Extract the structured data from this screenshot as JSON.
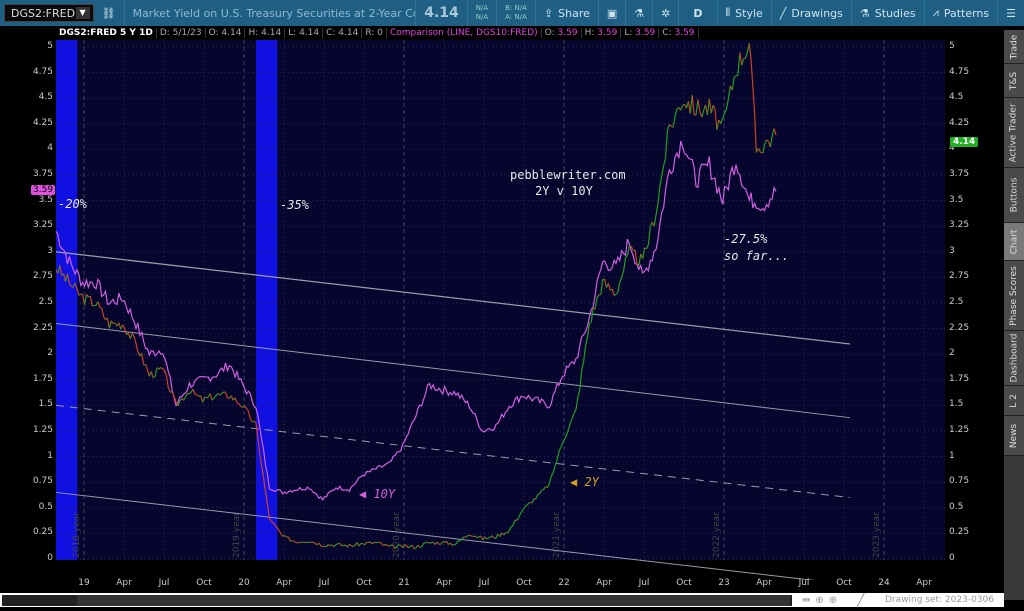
{
  "toolbar": {
    "symbol": "DGS2:FRED",
    "description": "Market Yield on U.S. Treasury Securities at 2-Year Constant...",
    "last": "4.14",
    "na1": "N/A",
    "na2": "N/A",
    "bid": "B: N/A",
    "ask": "A: N/A",
    "share": "Share",
    "aggregation": "D",
    "style": "Style",
    "drawings": "Drawings",
    "studies": "Studies",
    "patterns": "Patterns"
  },
  "info": {
    "title": "DGS2:FRED 5 Y 1D",
    "date": "D: 5/1/23",
    "open": "O: 4.14",
    "high": "H: 4.14",
    "low": "L: 4.14",
    "close": "C: 4.14",
    "range": "R: 0",
    "comparison": "Comparison (LINE, DGS10:FRED)",
    "c_open_l": "O:",
    "c_open": "3.59",
    "c_high_l": "H:",
    "c_high": "3.59",
    "c_low_l": "L:",
    "c_low": "3.59",
    "c_close_l": "C:",
    "c_close": "3.59"
  },
  "sidebar": [
    "Trade",
    "T&S",
    "Active Trader",
    "Buttons",
    "Chart",
    "Phase Scores",
    "Dashboard",
    "L 2",
    "News"
  ],
  "annotations": {
    "site": "pebblewriter.com",
    "subtitle": "2Y v 10Y",
    "a1": "-20%",
    "a2": "-35%",
    "a3": "-27.5%",
    "a4": "so far...",
    "l10": "10Y",
    "l2": "2Y"
  },
  "badges": {
    "left": "3.59",
    "right": "4.14"
  },
  "drawing_set": "Drawing set: 2023-0306",
  "colors": {
    "bg": "#05052e",
    "up": "#1fa01f",
    "down": "#d04020",
    "comparison": "#d060e0",
    "shade": "#1010e0",
    "badge_left": "#e050e0",
    "badge_right": "#20b020"
  },
  "chart_data": {
    "type": "line",
    "ylim": [
      0,
      5
    ],
    "yticks": [
      "0",
      "0.25",
      "0.5",
      "0.75",
      "1",
      "1.25",
      "1.5",
      "1.75",
      "2",
      "2.25",
      "2.5",
      "2.75",
      "3",
      "3.25",
      "3.5",
      "3.75",
      "4",
      "4.25",
      "4.5",
      "4.75",
      "5"
    ],
    "xticks": [
      "19",
      "Apr",
      "Jul",
      "Oct",
      "20",
      "Apr",
      "Jul",
      "Oct",
      "21",
      "Apr",
      "Jul",
      "Oct",
      "22",
      "Apr",
      "Jul",
      "Oct",
      "23",
      "Apr",
      "Jul",
      "Oct",
      "24",
      "Apr"
    ],
    "year_markers": [
      "2018 year",
      "2019 year",
      "2020 year",
      "2021 year",
      "2022 year",
      "2023 year"
    ],
    "x_start": "2018-11",
    "x": [
      "2018-11",
      "2018-12",
      "2019-01",
      "2019-02",
      "2019-03",
      "2019-04",
      "2019-05",
      "2019-06",
      "2019-07",
      "2019-08",
      "2019-09",
      "2019-10",
      "2019-11",
      "2019-12",
      "2020-01",
      "2020-02",
      "2020-03",
      "2020-04",
      "2020-05",
      "2020-06",
      "2020-07",
      "2020-08",
      "2020-09",
      "2020-10",
      "2020-11",
      "2020-12",
      "2021-01",
      "2021-02",
      "2021-03",
      "2021-04",
      "2021-05",
      "2021-06",
      "2021-07",
      "2021-08",
      "2021-09",
      "2021-10",
      "2021-11",
      "2021-12",
      "2022-01",
      "2022-02",
      "2022-03",
      "2022-04",
      "2022-05",
      "2022-06",
      "2022-07",
      "2022-08",
      "2022-09",
      "2022-10",
      "2022-11",
      "2022-12",
      "2023-01",
      "2023-02",
      "2023-03",
      "2023-03b",
      "2023-04",
      "2023-05"
    ],
    "series": [
      {
        "name": "DGS2:FRED",
        "values": [
          2.85,
          2.7,
          2.55,
          2.5,
          2.3,
          2.3,
          2.1,
          1.8,
          1.85,
          1.5,
          1.65,
          1.55,
          1.6,
          1.6,
          1.5,
          1.3,
          0.4,
          0.22,
          0.17,
          0.18,
          0.14,
          0.14,
          0.13,
          0.15,
          0.16,
          0.12,
          0.12,
          0.12,
          0.16,
          0.16,
          0.15,
          0.25,
          0.2,
          0.22,
          0.28,
          0.48,
          0.6,
          0.73,
          1.15,
          1.45,
          2.3,
          2.7,
          2.6,
          3.0,
          2.9,
          3.4,
          4.2,
          4.5,
          4.4,
          4.4,
          4.2,
          4.8,
          5.05,
          4.0,
          4.05,
          4.14
        ]
      },
      {
        "name": "DGS10:FRED",
        "values": [
          3.2,
          2.9,
          2.7,
          2.7,
          2.5,
          2.55,
          2.3,
          2.0,
          2.05,
          1.5,
          1.7,
          1.75,
          1.8,
          1.9,
          1.7,
          1.5,
          0.7,
          0.65,
          0.68,
          0.7,
          0.58,
          0.7,
          0.68,
          0.82,
          0.88,
          0.93,
          1.1,
          1.4,
          1.7,
          1.65,
          1.62,
          1.5,
          1.25,
          1.3,
          1.5,
          1.6,
          1.55,
          1.5,
          1.8,
          1.95,
          2.35,
          2.9,
          2.85,
          3.1,
          2.75,
          3.05,
          3.8,
          4.1,
          3.7,
          3.85,
          3.5,
          3.9,
          3.5,
          3.5,
          3.45,
          3.59
        ]
      }
    ],
    "shaded_periods": [
      [
        "2018-11",
        "2018-12"
      ],
      [
        "2020-02",
        "2020-03"
      ]
    ],
    "channel_lines": [
      [
        3.0,
        2.1
      ],
      [
        2.3,
        1.38
      ],
      [
        1.5,
        0.6
      ],
      [
        0.65,
        -0.25
      ]
    ]
  }
}
